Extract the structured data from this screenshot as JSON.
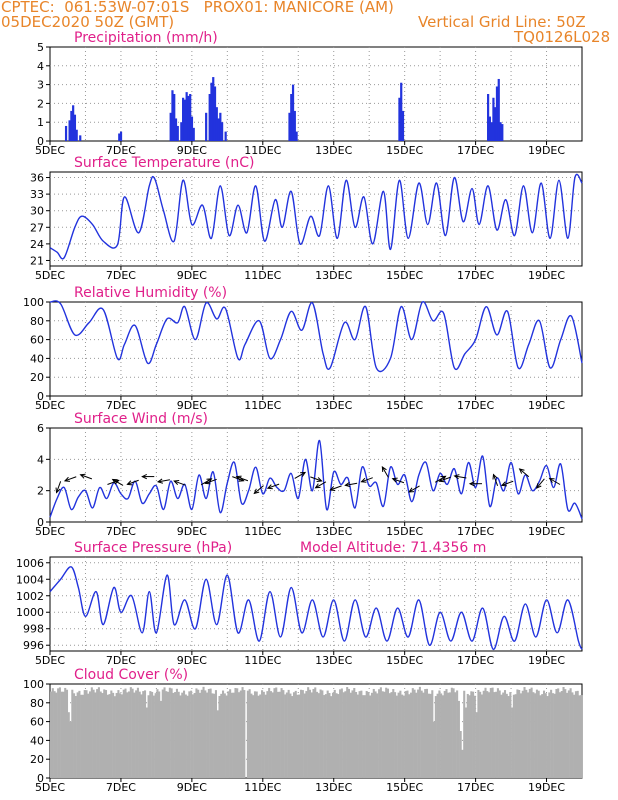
{
  "header": {
    "line1_left": "CPTEC:  061:53W-07:01S   PROX01: MANICORE (AM)",
    "line2_left": "05DEC2020 50Z (GMT)",
    "line2_right": "Vertical Grid Line: 50Z",
    "line3_right": "TQ0126L028"
  },
  "colors": {
    "header": "#e8852a",
    "title": "#e0208a",
    "line": "#2233dd",
    "cloud": "#b0b0b0"
  },
  "chart_data": [
    {
      "type": "bar",
      "title": "Precipitation (mm/h)",
      "ylim": [
        0,
        5
      ],
      "yticks": [
        "0",
        "1",
        "2",
        "3",
        "4",
        "5"
      ],
      "xticks": [
        "5DEC",
        "7DEC",
        "9DEC",
        "11DEC",
        "13DEC",
        "15DEC",
        "17DEC",
        "19DEC"
      ],
      "x_range_days": [
        0,
        15
      ],
      "bars": [
        [
          0.45,
          0.8
        ],
        [
          0.55,
          1.1
        ],
        [
          0.6,
          1.6
        ],
        [
          0.65,
          1.9
        ],
        [
          0.7,
          1.4
        ],
        [
          0.75,
          0.6
        ],
        [
          0.85,
          0.3
        ],
        [
          1.95,
          0.4
        ],
        [
          2.0,
          0.5
        ],
        [
          3.4,
          1.5
        ],
        [
          3.45,
          2.7
        ],
        [
          3.5,
          2.5
        ],
        [
          3.55,
          1.2
        ],
        [
          3.6,
          0.8
        ],
        [
          3.7,
          1.0
        ],
        [
          3.75,
          2.3
        ],
        [
          3.8,
          2.2
        ],
        [
          3.85,
          2.6
        ],
        [
          3.9,
          2.4
        ],
        [
          3.95,
          2.5
        ],
        [
          4.0,
          1.3
        ],
        [
          4.05,
          0.7
        ],
        [
          4.4,
          1.5
        ],
        [
          4.5,
          2.5
        ],
        [
          4.55,
          3.1
        ],
        [
          4.6,
          3.4
        ],
        [
          4.65,
          2.9
        ],
        [
          4.7,
          1.8
        ],
        [
          4.75,
          1.2
        ],
        [
          4.8,
          1.5
        ],
        [
          4.85,
          1.0
        ],
        [
          4.95,
          0.5
        ],
        [
          6.75,
          1.5
        ],
        [
          6.8,
          2.5
        ],
        [
          6.85,
          3.0
        ],
        [
          6.9,
          1.6
        ],
        [
          6.95,
          0.5
        ],
        [
          9.85,
          2.3
        ],
        [
          9.9,
          3.1
        ],
        [
          9.95,
          1.6
        ],
        [
          12.35,
          2.5
        ],
        [
          12.4,
          1.3
        ],
        [
          12.45,
          1.0
        ],
        [
          12.5,
          2.3
        ],
        [
          12.55,
          1.8
        ],
        [
          12.6,
          2.9
        ],
        [
          12.65,
          3.3
        ],
        [
          12.7,
          1.0
        ],
        [
          12.75,
          0.9
        ]
      ]
    },
    {
      "type": "line",
      "title": "Surface Temperature (nC)",
      "ylim": [
        20,
        37
      ],
      "yticks": [
        "21",
        "24",
        "27",
        "30",
        "33",
        "36"
      ],
      "xticks": [
        "5DEC",
        "7DEC",
        "9DEC",
        "11DEC",
        "13DEC",
        "15DEC",
        "17DEC",
        "19DEC"
      ],
      "x_range_days": [
        0,
        15
      ],
      "x": [
        0,
        0.2,
        0.4,
        0.7,
        0.9,
        1.2,
        1.5,
        1.9,
        2.1,
        2.5,
        2.8,
        2.95,
        3.2,
        3.5,
        3.75,
        4.0,
        4.3,
        4.55,
        4.8,
        5.05,
        5.3,
        5.55,
        5.8,
        6.05,
        6.35,
        6.55,
        6.8,
        7.05,
        7.35,
        7.6,
        7.85,
        8.1,
        8.35,
        8.6,
        8.85,
        9.1,
        9.4,
        9.6,
        9.85,
        10.1,
        10.4,
        10.65,
        10.9,
        11.15,
        11.4,
        11.65,
        11.9,
        12.1,
        12.35,
        12.6,
        12.85,
        13.1,
        13.35,
        13.6,
        13.85,
        14.1,
        14.35,
        14.6,
        14.8,
        15.0
      ],
      "y": [
        23.3,
        22.5,
        21.5,
        27.0,
        29.0,
        27.5,
        24.5,
        23.8,
        32.5,
        26.0,
        34.5,
        35.8,
        30.0,
        24.5,
        35.5,
        27.5,
        31.0,
        25.0,
        34.5,
        25.5,
        31.0,
        26.0,
        34.5,
        24.5,
        32.0,
        27.0,
        33.5,
        24.0,
        29.0,
        25.5,
        34.5,
        25.0,
        35.5,
        27.0,
        32.5,
        24.0,
        33.5,
        23.0,
        35.5,
        25.0,
        35.0,
        27.5,
        35.0,
        25.5,
        36.0,
        28.0,
        34.0,
        27.5,
        34.5,
        26.5,
        32.0,
        25.5,
        34.5,
        26.0,
        35.0,
        25.0,
        35.5,
        25.0,
        36.0,
        35.0
      ]
    },
    {
      "type": "line",
      "title": "Relative Humidity (%)",
      "ylim": [
        0,
        100
      ],
      "yticks": [
        "0",
        "20",
        "40",
        "60",
        "80",
        "100"
      ],
      "xticks": [
        "5DEC",
        "7DEC",
        "9DEC",
        "11DEC",
        "13DEC",
        "15DEC",
        "17DEC",
        "19DEC"
      ],
      "x_range_days": [
        0,
        15
      ],
      "x": [
        0,
        0.3,
        0.7,
        1.1,
        1.5,
        1.9,
        2.1,
        2.4,
        2.75,
        3.0,
        3.3,
        3.6,
        3.8,
        4.1,
        4.4,
        4.7,
        4.95,
        5.3,
        5.5,
        5.9,
        6.2,
        6.5,
        6.8,
        7.1,
        7.4,
        7.7,
        7.9,
        8.3,
        8.6,
        8.9,
        9.2,
        9.6,
        9.9,
        10.2,
        10.5,
        10.8,
        11.1,
        11.4,
        11.7,
        12.0,
        12.3,
        12.6,
        12.9,
        13.2,
        13.5,
        13.8,
        14.1,
        14.4,
        14.7,
        15.0
      ],
      "y": [
        100,
        98,
        65,
        78,
        92,
        40,
        55,
        75,
        35,
        55,
        82,
        78,
        95,
        60,
        99,
        82,
        93,
        40,
        55,
        80,
        40,
        60,
        90,
        70,
        99,
        45,
        30,
        78,
        60,
        95,
        30,
        40,
        95,
        60,
        100,
        80,
        88,
        30,
        45,
        60,
        95,
        65,
        90,
        30,
        55,
        80,
        30,
        60,
        85,
        35
      ]
    },
    {
      "type": "line",
      "title": "Surface Wind (m/s)",
      "ylim": [
        0,
        6
      ],
      "yticks": [
        "0",
        "2",
        "4",
        "6"
      ],
      "xticks": [
        "5DEC",
        "7DEC",
        "9DEC",
        "11DEC",
        "13DEC",
        "15DEC",
        "17DEC",
        "19DEC"
      ],
      "x_range_days": [
        0,
        15
      ],
      "x": [
        0,
        0.2,
        0.4,
        0.6,
        0.8,
        1.0,
        1.2,
        1.4,
        1.6,
        1.8,
        2.0,
        2.2,
        2.4,
        2.6,
        2.8,
        3.0,
        3.2,
        3.4,
        3.6,
        3.8,
        4.0,
        4.2,
        4.4,
        4.6,
        4.8,
        5.0,
        5.2,
        5.4,
        5.6,
        5.8,
        6.0,
        6.2,
        6.4,
        6.6,
        6.8,
        7.0,
        7.2,
        7.4,
        7.6,
        7.8,
        8.0,
        8.2,
        8.4,
        8.6,
        8.8,
        9.0,
        9.2,
        9.4,
        9.6,
        9.8,
        10.0,
        10.2,
        10.4,
        10.6,
        10.8,
        11.0,
        11.2,
        11.4,
        11.6,
        11.8,
        12.0,
        12.2,
        12.4,
        12.6,
        12.8,
        13.0,
        13.2,
        13.4,
        13.6,
        13.8,
        14.0,
        14.2,
        14.4,
        14.6,
        14.8,
        15.0
      ],
      "y": [
        0.3,
        1.5,
        2.2,
        0.8,
        1.6,
        2.0,
        0.9,
        2.2,
        1.5,
        2.5,
        1.8,
        1.5,
        2.6,
        1.2,
        1.8,
        2.3,
        0.8,
        2.6,
        1.5,
        2.4,
        0.8,
        3.0,
        1.5,
        3.2,
        0.6,
        2.5,
        3.8,
        1.2,
        2.0,
        3.5,
        1.8,
        2.8,
        2.2,
        2.0,
        3.1,
        1.5,
        4.0,
        2.0,
        5.2,
        0.8,
        3.2,
        2.4,
        2.8,
        0.9,
        3.5,
        2.3,
        2.5,
        1.0,
        3.5,
        2.4,
        3.0,
        1.3,
        3.0,
        3.8,
        2.0,
        3.1,
        2.4,
        3.4,
        1.8,
        3.8,
        2.2,
        4.2,
        1.0,
        2.8,
        2.0,
        3.8,
        1.8,
        3.0,
        2.0,
        2.6,
        3.6,
        2.2,
        3.7,
        0.8,
        1.2,
        0.2
      ]
    },
    {
      "type": "line",
      "title": "Surface Pressure (hPa)",
      "subtitle": "Model Altitude: 71.4356 m",
      "ylim": [
        995.3,
        1006.7
      ],
      "yticks": [
        "996",
        "998",
        "1000",
        "1002",
        "1004",
        "1006"
      ],
      "xticks": [
        "5DEC",
        "7DEC",
        "9DEC",
        "11DEC",
        "13DEC",
        "15DEC",
        "17DEC",
        "19DEC"
      ],
      "x_range_days": [
        0,
        15
      ],
      "x": [
        0,
        0.3,
        0.6,
        0.8,
        1.0,
        1.3,
        1.5,
        1.8,
        2.0,
        2.3,
        2.6,
        2.8,
        3.0,
        3.3,
        3.5,
        3.8,
        4.1,
        4.4,
        4.7,
        5.0,
        5.3,
        5.6,
        5.9,
        6.2,
        6.5,
        6.8,
        7.1,
        7.4,
        7.7,
        8.0,
        8.3,
        8.6,
        8.9,
        9.2,
        9.5,
        9.8,
        10.1,
        10.4,
        10.7,
        11.0,
        11.3,
        11.6,
        11.9,
        12.2,
        12.5,
        12.8,
        13.1,
        13.4,
        13.7,
        14.0,
        14.3,
        14.6,
        14.9,
        15.0
      ],
      "y": [
        1002.5,
        1004.0,
        1005.5,
        1003.0,
        999.5,
        1002.5,
        998.5,
        1003.0,
        1000.0,
        1002.0,
        997.5,
        1002.5,
        997.5,
        1004.5,
        998.5,
        1001.5,
        998.0,
        1004.0,
        998.5,
        1004.5,
        997.5,
        1001.5,
        996.5,
        1002.5,
        997.0,
        1003.0,
        997.5,
        1001.5,
        997.0,
        1001.5,
        996.5,
        1001.5,
        997.0,
        1000.5,
        996.5,
        1000.5,
        997.0,
        1001.5,
        996.0,
        1000.0,
        996.5,
        1000.0,
        996.5,
        1000.5,
        995.5,
        999.5,
        996.5,
        1001.0,
        997.0,
        1001.5,
        997.5,
        1001.5,
        996.5,
        995.5
      ]
    },
    {
      "type": "bar",
      "title": "Cloud Cover (%)",
      "ylim": [
        0,
        100
      ],
      "yticks": [
        "0",
        "20",
        "40",
        "60",
        "80",
        "100"
      ],
      "xticks": [
        "5DEC",
        "7DEC",
        "9DEC",
        "11DEC",
        "13DEC",
        "15DEC",
        "17DEC",
        "19DEC"
      ],
      "x_range_days": [
        0,
        15
      ],
      "fill_base": 92,
      "dips": [
        [
          0.5,
          70
        ],
        [
          0.55,
          60
        ],
        [
          2.7,
          75
        ],
        [
          3.1,
          82
        ],
        [
          4.7,
          72
        ],
        [
          5.5,
          0
        ],
        [
          10.8,
          60
        ],
        [
          11.7,
          75
        ],
        [
          12.0,
          70
        ],
        [
          13.0,
          75
        ],
        [
          11.5,
          82
        ],
        [
          11.6,
          30
        ],
        [
          11.55,
          50
        ]
      ]
    }
  ]
}
